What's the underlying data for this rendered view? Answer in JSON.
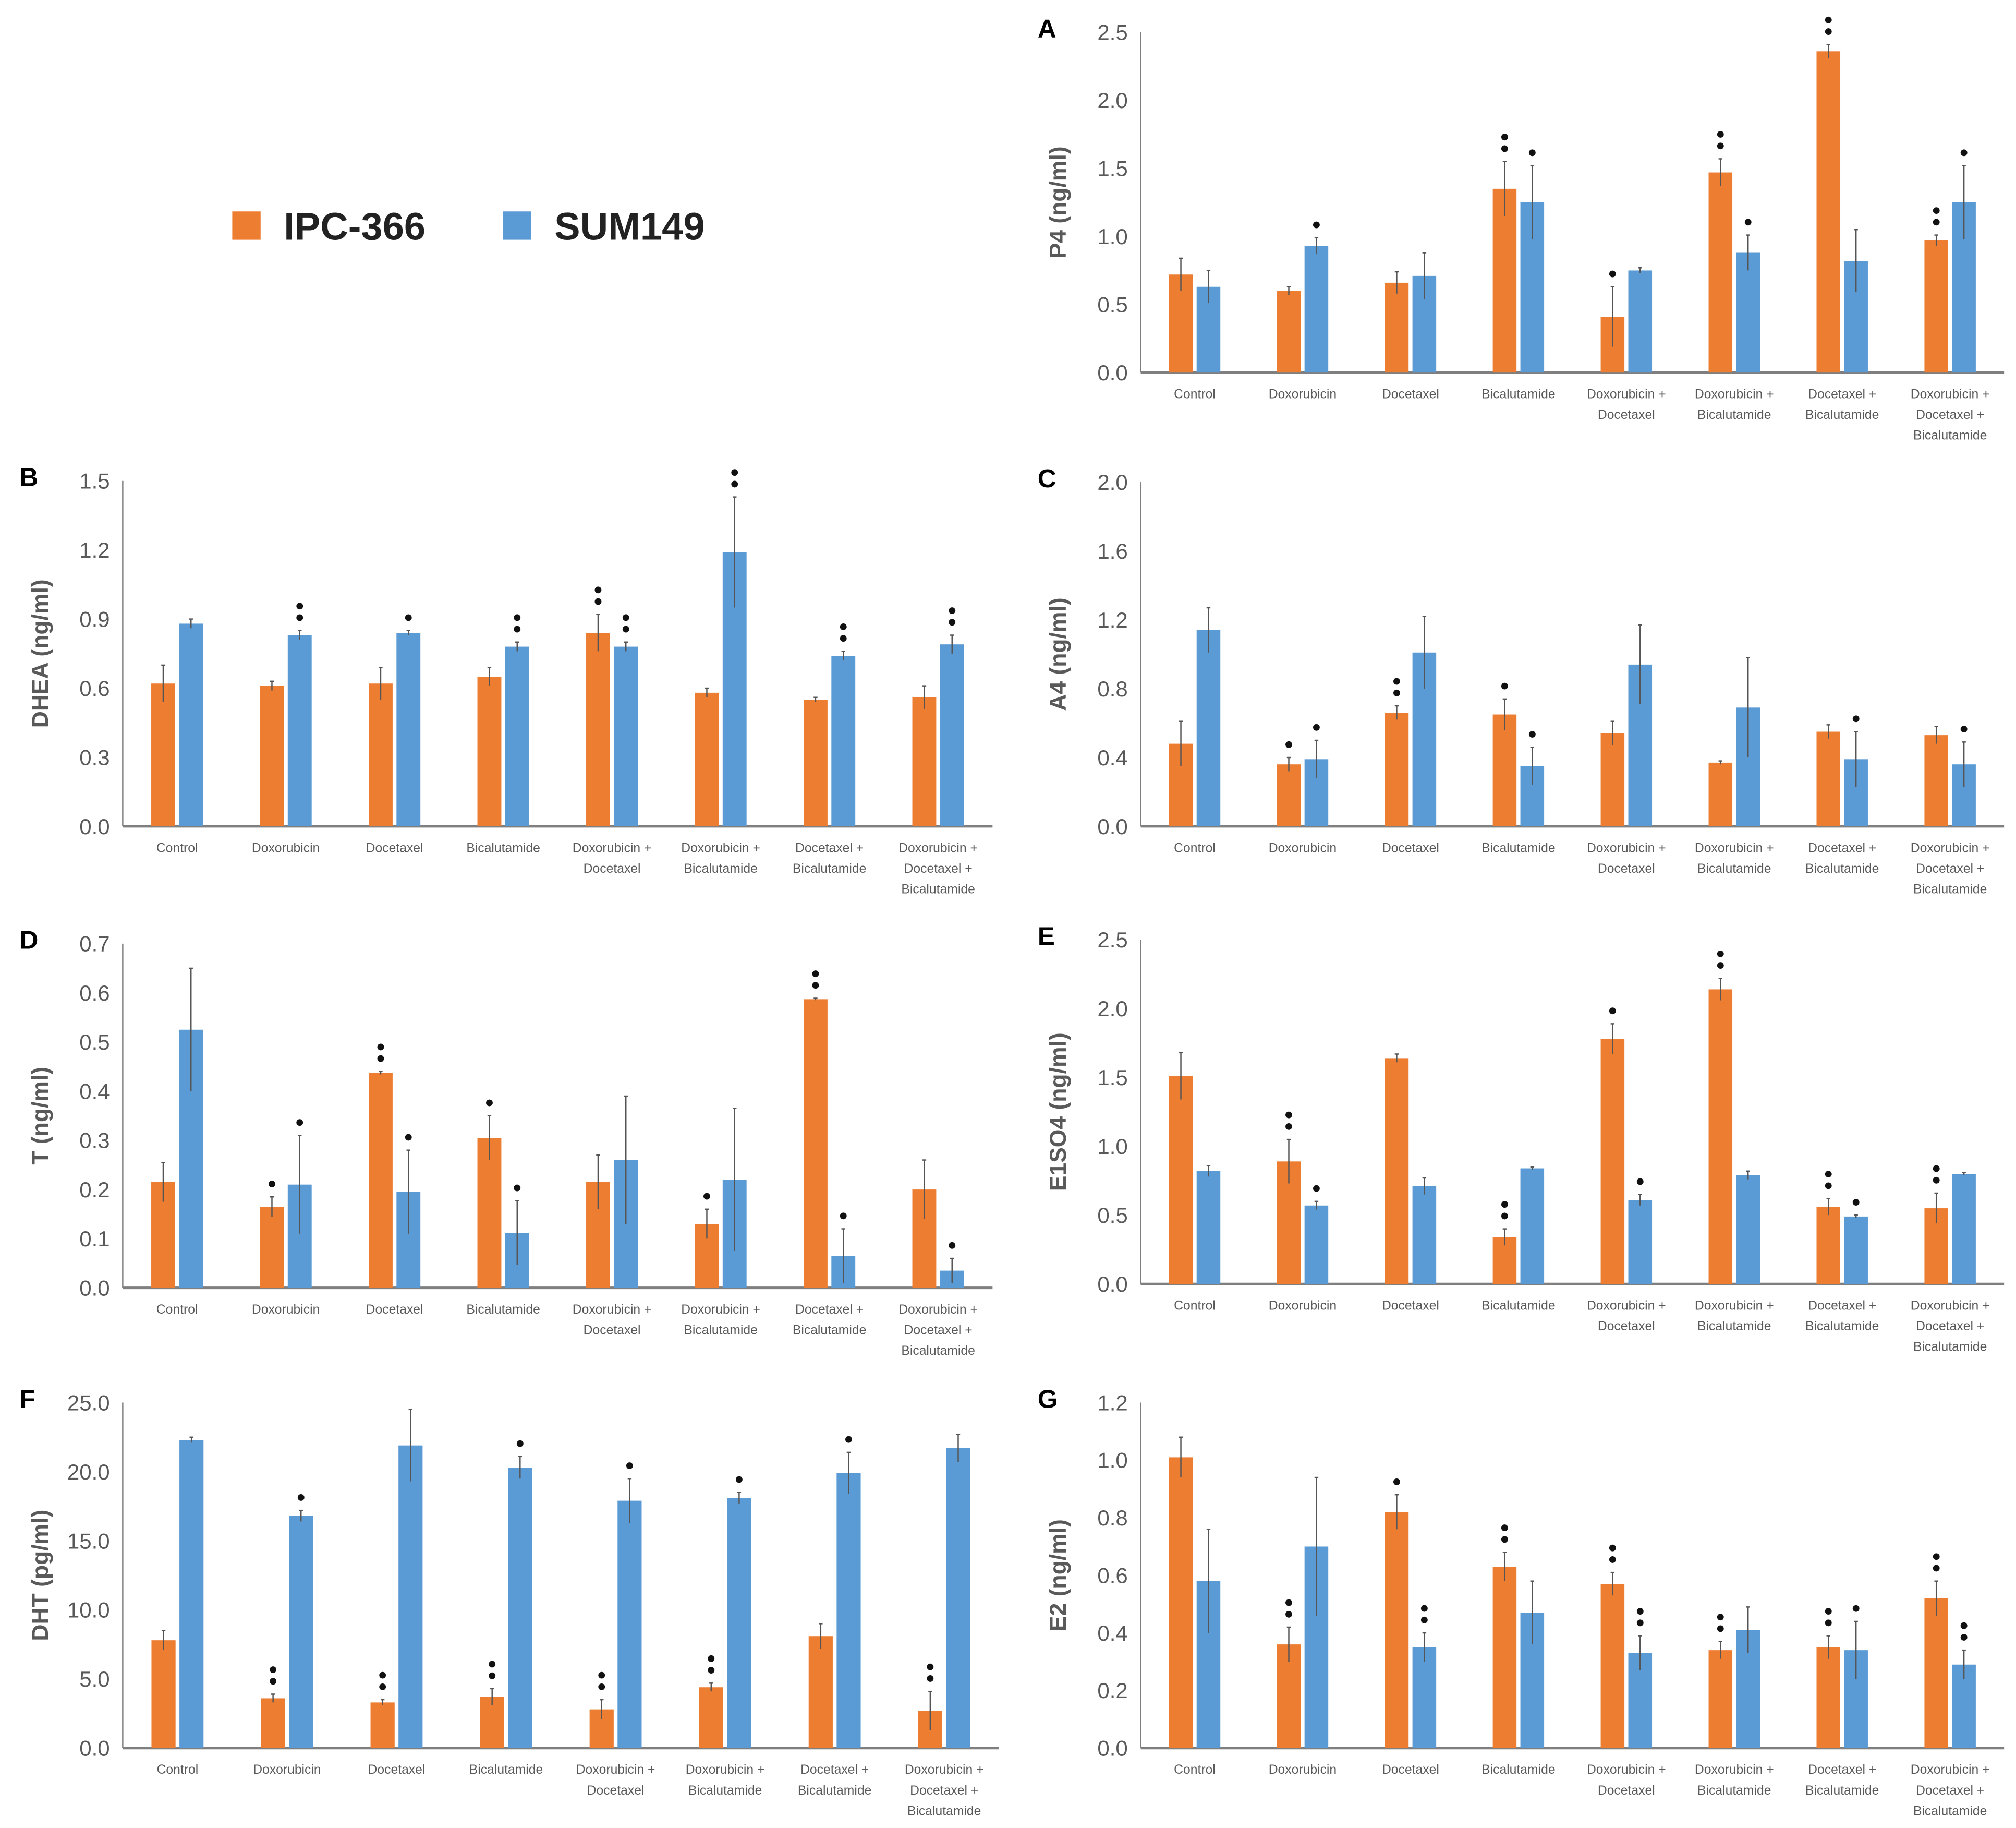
{
  "colors": {
    "ipc366": "#ED7D31",
    "sum149": "#5B9BD5",
    "axis": "#7f7f7f",
    "text": "#595959",
    "star": "#111111"
  },
  "legend": {
    "items": [
      "IPC-366",
      "SUM149"
    ],
    "placement": "top-left"
  },
  "chart_data": [
    {
      "type": "bar",
      "panel": "A",
      "ylabel": "P4 (ng/ml)",
      "ylim": [
        0,
        2.5
      ],
      "yticks": [
        0,
        0.5,
        1.0,
        1.5,
        2.0,
        2.5
      ],
      "decimals": 1,
      "categories": [
        [
          "Control"
        ],
        [
          "Doxorubicin"
        ],
        [
          "Docetaxel"
        ],
        [
          "Bicalutamide"
        ],
        [
          "Doxorubicin +",
          "Docetaxel"
        ],
        [
          "Doxorubicin +",
          "Bicalutamide"
        ],
        [
          "Docetaxel +",
          "Bicalutamide"
        ],
        [
          "Doxorubicin +",
          "Docetaxel +",
          "Bicalutamide"
        ]
      ],
      "series": [
        {
          "name": "IPC-366",
          "values": [
            0.72,
            0.6,
            0.66,
            1.35,
            0.41,
            1.47,
            2.36,
            0.97
          ],
          "errors": [
            0.12,
            0.03,
            0.08,
            0.2,
            0.22,
            0.1,
            0.05,
            0.04
          ],
          "sig": [
            0,
            0,
            0,
            2,
            1,
            2,
            2,
            2
          ]
        },
        {
          "name": "SUM149",
          "values": [
            0.63,
            0.93,
            0.71,
            1.25,
            0.75,
            0.88,
            0.82,
            1.25
          ],
          "errors": [
            0.12,
            0.06,
            0.17,
            0.27,
            0.02,
            0.13,
            0.23,
            0.27
          ],
          "sig": [
            0,
            1,
            0,
            1,
            0,
            1,
            0,
            1
          ]
        }
      ]
    },
    {
      "type": "bar",
      "panel": "B",
      "ylabel": "DHEA (ng/ml)",
      "ylim": [
        0,
        1.5
      ],
      "yticks": [
        0,
        0.3,
        0.6,
        0.9,
        1.2,
        1.5
      ],
      "decimals": 1,
      "categories": [
        [
          "Control"
        ],
        [
          "Doxorubicin"
        ],
        [
          "Docetaxel"
        ],
        [
          "Bicalutamide"
        ],
        [
          "Doxorubicin +",
          "Docetaxel"
        ],
        [
          "Doxorubicin +",
          "Bicalutamide"
        ],
        [
          "Docetaxel +",
          "Bicalutamide"
        ],
        [
          "Doxorubicin +",
          "Docetaxel +",
          "Bicalutamide"
        ]
      ],
      "series": [
        {
          "name": "IPC-366",
          "values": [
            0.62,
            0.61,
            0.62,
            0.65,
            0.84,
            0.58,
            0.55,
            0.56
          ],
          "errors": [
            0.08,
            0.02,
            0.07,
            0.04,
            0.08,
            0.02,
            0.01,
            0.05
          ],
          "sig": [
            0,
            0,
            0,
            0,
            2,
            0,
            0,
            0
          ]
        },
        {
          "name": "SUM149",
          "values": [
            0.88,
            0.83,
            0.84,
            0.78,
            0.78,
            1.19,
            0.74,
            0.79
          ],
          "errors": [
            0.02,
            0.02,
            0.01,
            0.02,
            0.02,
            0.24,
            0.02,
            0.04
          ],
          "sig": [
            0,
            2,
            1,
            2,
            2,
            2,
            2,
            2
          ]
        }
      ]
    },
    {
      "type": "bar",
      "panel": "C",
      "ylabel": "A4 (ng/ml)",
      "ylim": [
        0,
        2.0
      ],
      "yticks": [
        0,
        0.4,
        0.8,
        1.2,
        1.6,
        2.0
      ],
      "decimals": 1,
      "categories": [
        [
          "Control"
        ],
        [
          "Doxorubicin"
        ],
        [
          "Docetaxel"
        ],
        [
          "Bicalutamide"
        ],
        [
          "Doxorubicin +",
          "Docetaxel"
        ],
        [
          "Doxorubicin +",
          "Bicalutamide"
        ],
        [
          "Docetaxel +",
          "Bicalutamide"
        ],
        [
          "Doxorubicin +",
          "Docetaxel +",
          "Bicalutamide"
        ]
      ],
      "series": [
        {
          "name": "IPC-366",
          "values": [
            0.48,
            0.36,
            0.66,
            0.65,
            0.54,
            0.37,
            0.55,
            0.53
          ],
          "errors": [
            0.13,
            0.04,
            0.04,
            0.09,
            0.07,
            0.01,
            0.04,
            0.05
          ],
          "sig": [
            0,
            1,
            2,
            1,
            0,
            0,
            0,
            0
          ]
        },
        {
          "name": "SUM149",
          "values": [
            1.14,
            0.39,
            1.01,
            0.35,
            0.94,
            0.69,
            0.39,
            0.36
          ],
          "errors": [
            0.13,
            0.11,
            0.21,
            0.11,
            0.23,
            0.29,
            0.16,
            0.13
          ],
          "sig": [
            0,
            1,
            0,
            1,
            0,
            0,
            1,
            1
          ]
        }
      ]
    },
    {
      "type": "bar",
      "panel": "D",
      "ylabel": "T (ng/ml)",
      "ylim": [
        0,
        0.7
      ],
      "yticks": [
        0,
        0.1,
        0.2,
        0.3,
        0.4,
        0.5,
        0.6,
        0.7
      ],
      "decimals": 1,
      "categories": [
        [
          "Control"
        ],
        [
          "Doxorubicin"
        ],
        [
          "Docetaxel"
        ],
        [
          "Bicalutamide"
        ],
        [
          "Doxorubicin +",
          "Docetaxel"
        ],
        [
          "Doxorubicin +",
          "Bicalutamide"
        ],
        [
          "Docetaxel +",
          "Bicalutamide"
        ],
        [
          "Doxorubicin +",
          "Docetaxel +",
          "Bicalutamide"
        ]
      ],
      "series": [
        {
          "name": "IPC-366",
          "values": [
            0.215,
            0.165,
            0.437,
            0.305,
            0.215,
            0.13,
            0.587,
            0.2
          ],
          "errors": [
            0.04,
            0.02,
            0.003,
            0.045,
            0.055,
            0.03,
            0.002,
            0.06
          ],
          "sig": [
            0,
            1,
            2,
            1,
            0,
            1,
            2,
            0
          ]
        },
        {
          "name": "SUM149",
          "values": [
            0.525,
            0.21,
            0.195,
            0.112,
            0.26,
            0.22,
            0.065,
            0.035
          ],
          "errors": [
            0.125,
            0.1,
            0.085,
            0.065,
            0.13,
            0.145,
            0.055,
            0.025
          ],
          "sig": [
            0,
            1,
            1,
            1,
            0,
            0,
            1,
            1
          ]
        }
      ]
    },
    {
      "type": "bar",
      "panel": "E",
      "ylabel": "E1SO4 (ng/ml)",
      "ylim": [
        0,
        2.5
      ],
      "yticks": [
        0,
        0.5,
        1.0,
        1.5,
        2.0,
        2.5
      ],
      "decimals": 1,
      "categories": [
        [
          "Control"
        ],
        [
          "Doxorubicin"
        ],
        [
          "Docetaxel"
        ],
        [
          "Bicalutamide"
        ],
        [
          "Doxorubicin +",
          "Docetaxel"
        ],
        [
          "Doxorubicin +",
          "Bicalutamide"
        ],
        [
          "Docetaxel +",
          "Bicalutamide"
        ],
        [
          "Doxorubicin +",
          "Docetaxel +",
          "Bicalutamide"
        ]
      ],
      "series": [
        {
          "name": "IPC-366",
          "values": [
            1.51,
            0.89,
            1.64,
            0.34,
            1.78,
            2.14,
            0.56,
            0.55
          ],
          "errors": [
            0.17,
            0.16,
            0.03,
            0.06,
            0.11,
            0.08,
            0.06,
            0.11
          ],
          "sig": [
            0,
            2,
            0,
            2,
            1,
            2,
            2,
            2
          ]
        },
        {
          "name": "SUM149",
          "values": [
            0.82,
            0.57,
            0.71,
            0.84,
            0.61,
            0.79,
            0.49,
            0.8
          ],
          "errors": [
            0.04,
            0.03,
            0.06,
            0.01,
            0.04,
            0.03,
            0.01,
            0.01
          ],
          "sig": [
            0,
            1,
            0,
            0,
            1,
            0,
            1,
            0
          ]
        }
      ]
    },
    {
      "type": "bar",
      "panel": "F",
      "ylabel": "DHT (pg/ml)",
      "ylim": [
        0,
        25
      ],
      "yticks": [
        0,
        5,
        10,
        15,
        20,
        25
      ],
      "decimals": 1,
      "categories": [
        [
          "Control"
        ],
        [
          "Doxorubicin"
        ],
        [
          "Docetaxel"
        ],
        [
          "Bicalutamide"
        ],
        [
          "Doxorubicin +",
          "Docetaxel"
        ],
        [
          "Doxorubicin +",
          "Bicalutamide"
        ],
        [
          "Docetaxel +",
          "Bicalutamide"
        ],
        [
          "Doxorubicin +",
          "Docetaxel +",
          "Bicalutamide"
        ]
      ],
      "series": [
        {
          "name": "IPC-366",
          "values": [
            7.8,
            3.6,
            3.3,
            3.7,
            2.8,
            4.4,
            8.1,
            2.7
          ],
          "errors": [
            0.7,
            0.3,
            0.2,
            0.6,
            0.7,
            0.3,
            0.9,
            1.4
          ],
          "sig": [
            0,
            2,
            2,
            2,
            2,
            2,
            0,
            2
          ]
        },
        {
          "name": "SUM149",
          "values": [
            22.3,
            16.8,
            21.9,
            20.3,
            17.9,
            18.1,
            19.9,
            21.7
          ],
          "errors": [
            0.2,
            0.4,
            2.6,
            0.8,
            1.6,
            0.4,
            1.5,
            1.0
          ],
          "sig": [
            0,
            1,
            0,
            1,
            1,
            1,
            1,
            0
          ]
        }
      ]
    },
    {
      "type": "bar",
      "panel": "G",
      "ylabel": "E2 (ng/ml)",
      "ylim": [
        0,
        1.2
      ],
      "yticks": [
        0,
        0.2,
        0.4,
        0.6,
        0.8,
        1.0,
        1.2
      ],
      "decimals": 1,
      "categories": [
        [
          "Control"
        ],
        [
          "Doxorubicin"
        ],
        [
          "Docetaxel"
        ],
        [
          "Bicalutamide"
        ],
        [
          "Doxorubicin +",
          "Docetaxel"
        ],
        [
          "Doxorubicin +",
          "Bicalutamide"
        ],
        [
          "Docetaxel +",
          "Bicalutamide"
        ],
        [
          "Doxorubicin +",
          "Docetaxel +",
          "Bicalutamide"
        ]
      ],
      "series": [
        {
          "name": "IPC-366",
          "values": [
            1.01,
            0.36,
            0.82,
            0.63,
            0.57,
            0.34,
            0.35,
            0.52
          ],
          "errors": [
            0.07,
            0.06,
            0.06,
            0.05,
            0.04,
            0.03,
            0.04,
            0.06
          ],
          "sig": [
            0,
            2,
            1,
            2,
            2,
            2,
            2,
            2
          ]
        },
        {
          "name": "SUM149",
          "values": [
            0.58,
            0.7,
            0.35,
            0.47,
            0.33,
            0.41,
            0.34,
            0.29
          ],
          "errors": [
            0.18,
            0.24,
            0.05,
            0.11,
            0.06,
            0.08,
            0.1,
            0.05
          ],
          "sig": [
            0,
            0,
            2,
            0,
            2,
            0,
            1,
            2
          ]
        }
      ]
    }
  ]
}
